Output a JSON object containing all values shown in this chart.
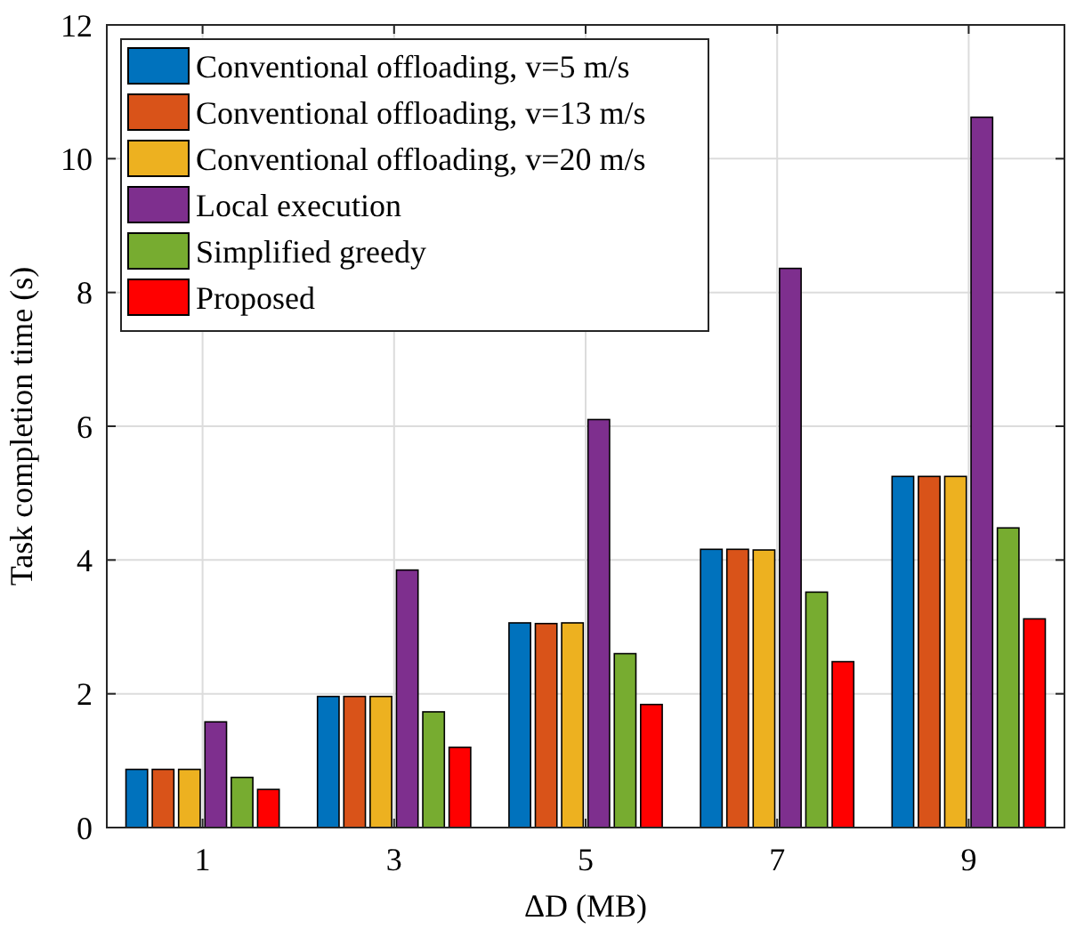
{
  "chart_data": {
    "type": "bar",
    "xlabel": "ΔD (MB)",
    "ylabel": "Task completion time (s)",
    "categories": [
      "1",
      "3",
      "5",
      "7",
      "9"
    ],
    "series": [
      {
        "name": "Conventional offloading, v=5 m/s",
        "color": "#0072bd",
        "values": [
          0.87,
          1.96,
          3.06,
          4.16,
          5.25
        ]
      },
      {
        "name": "Conventional offloading, v=13 m/s",
        "color": "#d95319",
        "values": [
          0.87,
          1.96,
          3.05,
          4.16,
          5.25
        ]
      },
      {
        "name": "Conventional offloading, v=20 m/s",
        "color": "#edb120",
        "values": [
          0.87,
          1.96,
          3.06,
          4.15,
          5.25
        ]
      },
      {
        "name": "Local execution",
        "color": "#7e2f8e",
        "values": [
          1.58,
          3.85,
          6.1,
          8.36,
          10.62
        ]
      },
      {
        "name": "Simplified greedy",
        "color": "#77ac30",
        "values": [
          0.75,
          1.73,
          2.6,
          3.52,
          4.48
        ]
      },
      {
        "name": "Proposed",
        "color": "#ff0000",
        "values": [
          0.57,
          1.2,
          1.84,
          2.48,
          3.12
        ]
      }
    ],
    "ylim": [
      0,
      12
    ],
    "yticks": [
      0,
      2,
      4,
      6,
      8,
      10,
      12
    ],
    "grid": true,
    "legend": "top left"
  }
}
